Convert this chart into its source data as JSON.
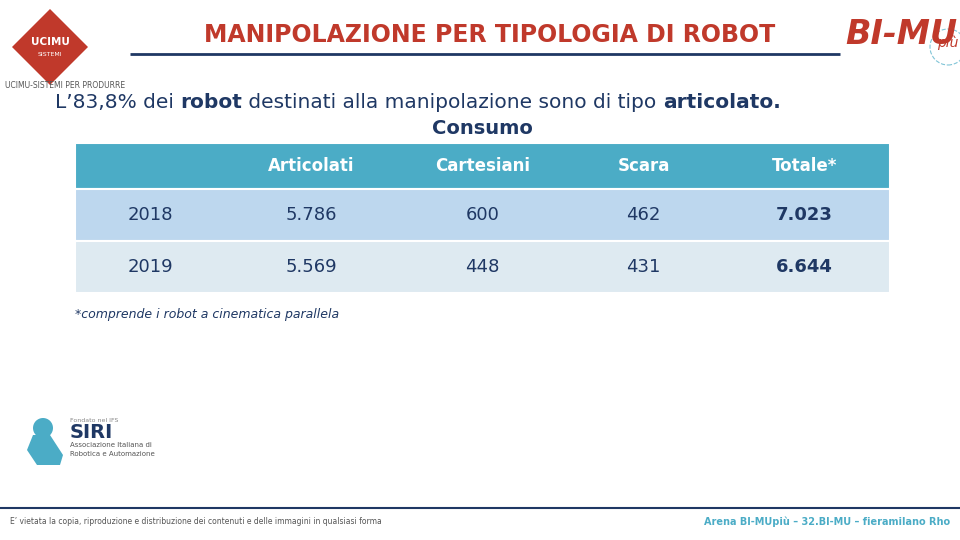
{
  "title": "MANIPOLAZIONE PER TIPOLOGIA DI ROBOT",
  "title_color": "#C0392B",
  "background_color": "#FFFFFF",
  "subtitle_plain": "L’83,8% dei ",
  "subtitle_bold1": "robot",
  "subtitle_mid": " destinati alla manipolazione sono di tipo ",
  "subtitle_bold2": "articolato.",
  "table_title": "Consumo",
  "header_row": [
    "",
    "Articolati",
    "Cartesiani",
    "Scara",
    "Totale*"
  ],
  "rows": [
    [
      "2018",
      "5.786",
      "600",
      "462",
      "7.023"
    ],
    [
      "2019",
      "5.569",
      "448",
      "431",
      "6.644"
    ]
  ],
  "header_bg": "#4BACC6",
  "row1_bg": "#BDD7EE",
  "row2_bg": "#DEEAF1",
  "header_text_color": "#FFFFFF",
  "row_text_color": "#1F3864",
  "footnote": "*comprende i robot a cinematica parallela",
  "footer_left": "E’ vietata la copia, riproduzione e distribuzione dei contenuti e delle immagini in qualsiasi forma",
  "footer_right": "Arena BI-MUpiù – 32.BI-MU – fieramilano Rho",
  "footer_color": "#4BACC6",
  "header_line_color": "#1F3864",
  "bimupiu_color": "#C0392B",
  "ucimu_red": "#C0392B",
  "dark_text": "#1F3864",
  "siri_blue": "#4BACC6"
}
